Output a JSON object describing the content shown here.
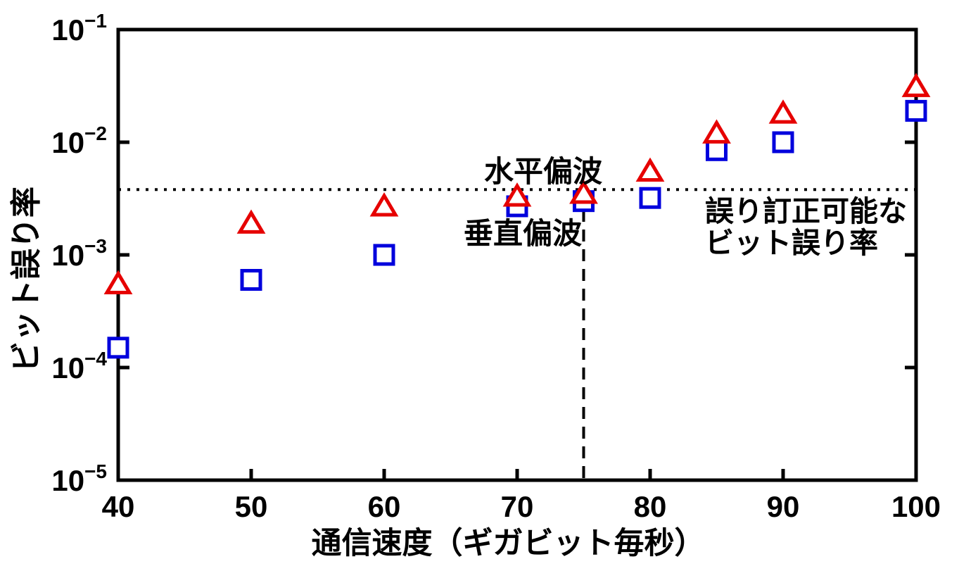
{
  "chart_data": {
    "type": "scatter",
    "title": "",
    "xlabel": "通信速度（ギガビット毎秒）",
    "ylabel": "ビット誤り率",
    "x_axis": {
      "min": 40,
      "max": 100,
      "ticks": [
        40,
        50,
        60,
        70,
        80,
        90,
        100
      ]
    },
    "y_axis": {
      "scale": "log",
      "min": 1e-05,
      "max": 0.1,
      "tick_exponents": [
        -1,
        -2,
        -3,
        -4,
        -5
      ],
      "tick_base": "10"
    },
    "grid": false,
    "legend_position": "inline-annotations",
    "series": [
      {
        "name": "水平偏波",
        "marker": "triangle",
        "color": "#e60000",
        "x": [
          40,
          50,
          60,
          70,
          75,
          80,
          85,
          90,
          100
        ],
        "y": [
          0.00055,
          0.0019,
          0.0027,
          0.0033,
          0.0035,
          0.0055,
          0.012,
          0.018,
          0.031
        ]
      },
      {
        "name": "垂直偏波",
        "marker": "square",
        "color": "#0000dd",
        "x": [
          40,
          50,
          60,
          70,
          75,
          80,
          85,
          90,
          100
        ],
        "y": [
          0.00015,
          0.0006,
          0.001,
          0.0027,
          0.003,
          0.0032,
          0.0085,
          0.01,
          0.019
        ]
      }
    ],
    "reference_lines": [
      {
        "id": "fec-threshold",
        "orientation": "horizontal",
        "value": 0.0038,
        "style": "dotted",
        "color": "#000000"
      },
      {
        "id": "rate-75",
        "orientation": "vertical",
        "value": 75,
        "style": "dashed",
        "color": "#000000"
      }
    ],
    "annotations": {
      "series_label_horizontal": {
        "text": "水平偏波",
        "color": "#e60000"
      },
      "series_label_vertical": {
        "text": "垂直偏波",
        "color": "#0000dd"
      },
      "fec_note_line1": {
        "text": "誤り訂正可能な",
        "color": "#000000"
      },
      "fec_note_line2": {
        "text": "ビット誤り率",
        "color": "#000000"
      }
    }
  },
  "colors": {
    "background": "#ffffff",
    "axis": "#000000",
    "series_horizontal": "#e60000",
    "series_vertical": "#0000dd"
  }
}
